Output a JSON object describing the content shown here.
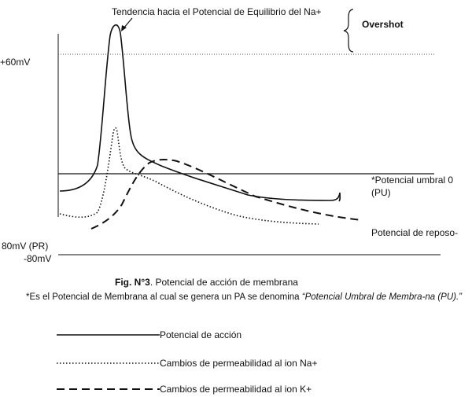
{
  "figure": {
    "annotations": {
      "na_equilibrium": "Tendencia hacia el Potencial de Equilibrio del Na+",
      "overshot": "Overshot",
      "plus60": "+60mV",
      "umbral_line1": "*Potencial umbral  0",
      "umbral_line2": "(PU)",
      "reposo": "Potencial de reposo-",
      "pr_label": "80mV (PR)",
      "minus80": "-80mV"
    },
    "curves": [
      {
        "name": "Potencial de acción",
        "style": "solid"
      },
      {
        "name": "Cambios de permeabilidad al ion Na+",
        "style": "dotted"
      },
      {
        "name": "Cambios de permeabilidad al ion K+",
        "style": "dashed"
      }
    ]
  },
  "caption": {
    "prefix": "Fig. N°3",
    "text": ". Potencial de acción de membrana"
  },
  "note": {
    "lead": "*Es el Potencial de Membrana al cual se genera un PA se denomina ",
    "term": "“Potencial Umbral de Membra-na (PU).”"
  },
  "legend": [
    {
      "label": "Potencial de acción"
    },
    {
      "label": "Cambios de permeabilidad al ion Na+"
    },
    {
      "label": "Cambios de permeabilidad al ion K+"
    }
  ]
}
